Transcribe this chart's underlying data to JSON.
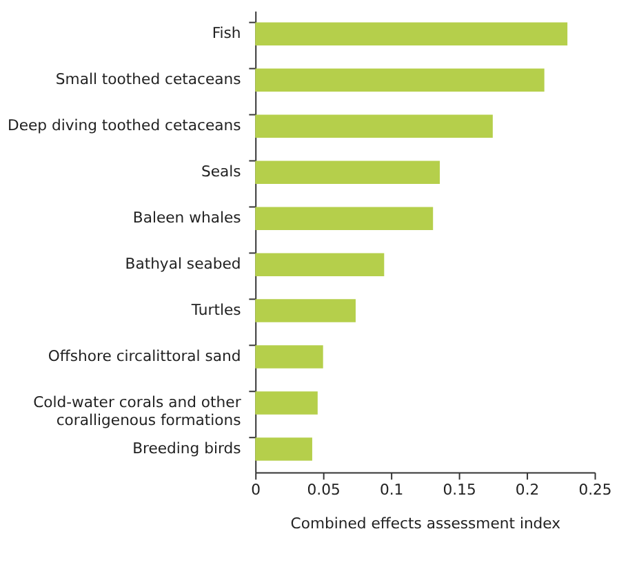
{
  "chart_data": {
    "type": "bar",
    "orientation": "horizontal",
    "xlabel": "Combined effects assessment index",
    "categories": [
      "Fish",
      "Small toothed cetaceans",
      "Deep diving toothed cetaceans",
      "Seals",
      "Baleen whales",
      "Bathyal seabed",
      "Turtles",
      "Offshore circalittoral sand",
      "Cold-water corals and other coralligenous formations",
      "Breeding birds"
    ],
    "values": [
      0.23,
      0.213,
      0.175,
      0.136,
      0.131,
      0.095,
      0.074,
      0.05,
      0.046,
      0.042
    ],
    "color": "#b5cf4b",
    "xlim": [
      0,
      0.25
    ],
    "xticks": [
      0,
      0.05,
      0.1,
      0.15,
      0.2,
      0.25
    ],
    "grid": false
  }
}
